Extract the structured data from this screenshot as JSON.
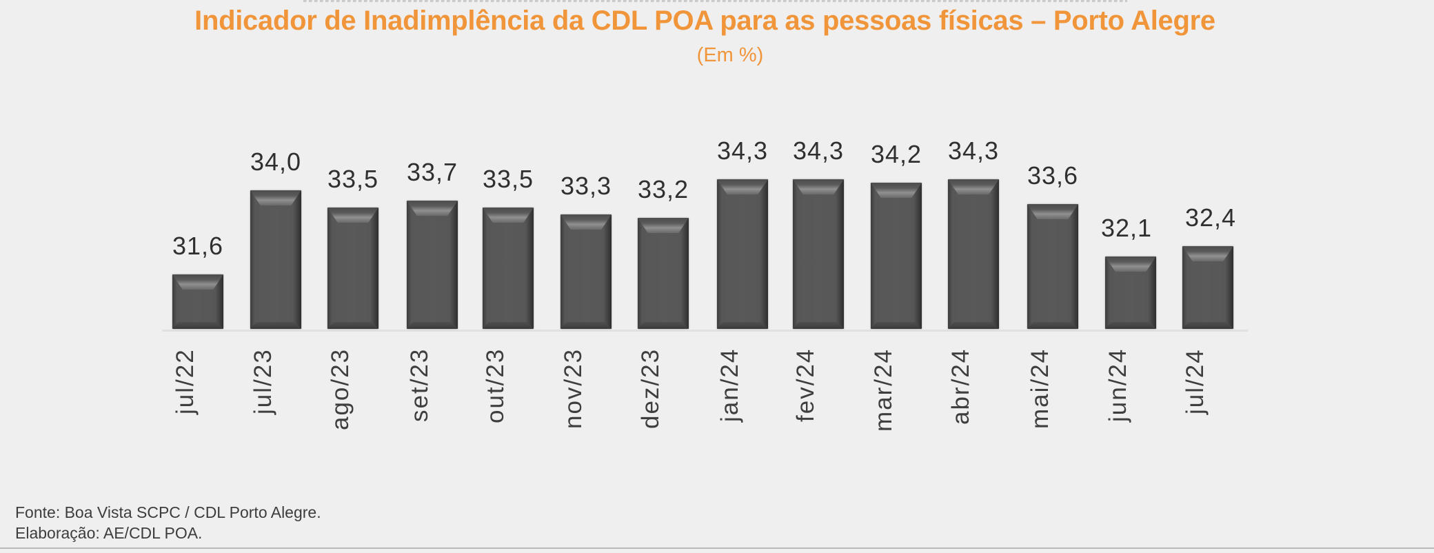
{
  "header": {
    "title": "Indicador de Inadimplência da CDL POA para as pessoas físicas – Porto Alegre",
    "subtitle": "(Em %)"
  },
  "footer": {
    "source": "Fonte: Boa Vista SCPC / CDL Porto Alegre.",
    "elaboration": "Elaboração: AE/CDL POA."
  },
  "colors": {
    "title": "#f0953a",
    "bar": "#575757",
    "text": "#2f2f2f",
    "background": "#efefef"
  },
  "bars": [
    {
      "label": "jul/22",
      "value": "31,6"
    },
    {
      "label": "jul/23",
      "value": "34,0"
    },
    {
      "label": "ago/23",
      "value": "33,5"
    },
    {
      "label": "set/23",
      "value": "33,7"
    },
    {
      "label": "out/23",
      "value": "33,5"
    },
    {
      "label": "nov/23",
      "value": "33,3"
    },
    {
      "label": "dez/23",
      "value": "33,2"
    },
    {
      "label": "jan/24",
      "value": "34,3"
    },
    {
      "label": "fev/24",
      "value": "34,3"
    },
    {
      "label": "mar/24",
      "value": "34,2"
    },
    {
      "label": "abr/24",
      "value": "34,3"
    },
    {
      "label": "mai/24",
      "value": "33,6"
    },
    {
      "label": "jun/24",
      "value": "32,1"
    },
    {
      "label": "jul/24",
      "value": "32,4"
    }
  ],
  "chart_data": {
    "type": "bar",
    "title": "Indicador de Inadimplência da CDL POA para as pessoas físicas – Porto Alegre",
    "subtitle": "(Em %)",
    "xlabel": "",
    "ylabel": "",
    "categories": [
      "jul/22",
      "jul/23",
      "ago/23",
      "set/23",
      "out/23",
      "nov/23",
      "dez/23",
      "jan/24",
      "fev/24",
      "mar/24",
      "abr/24",
      "mai/24",
      "jun/24",
      "jul/24"
    ],
    "values": [
      31.6,
      34.0,
      33.5,
      33.7,
      33.5,
      33.3,
      33.2,
      34.3,
      34.3,
      34.2,
      34.3,
      33.6,
      32.1,
      32.4
    ],
    "data_labels": true,
    "y_axis_visible": false,
    "grid": false,
    "legend": null,
    "notes": [
      "Fonte: Boa Vista SCPC / CDL Porto Alegre.",
      "Elaboração: AE/CDL POA."
    ]
  }
}
